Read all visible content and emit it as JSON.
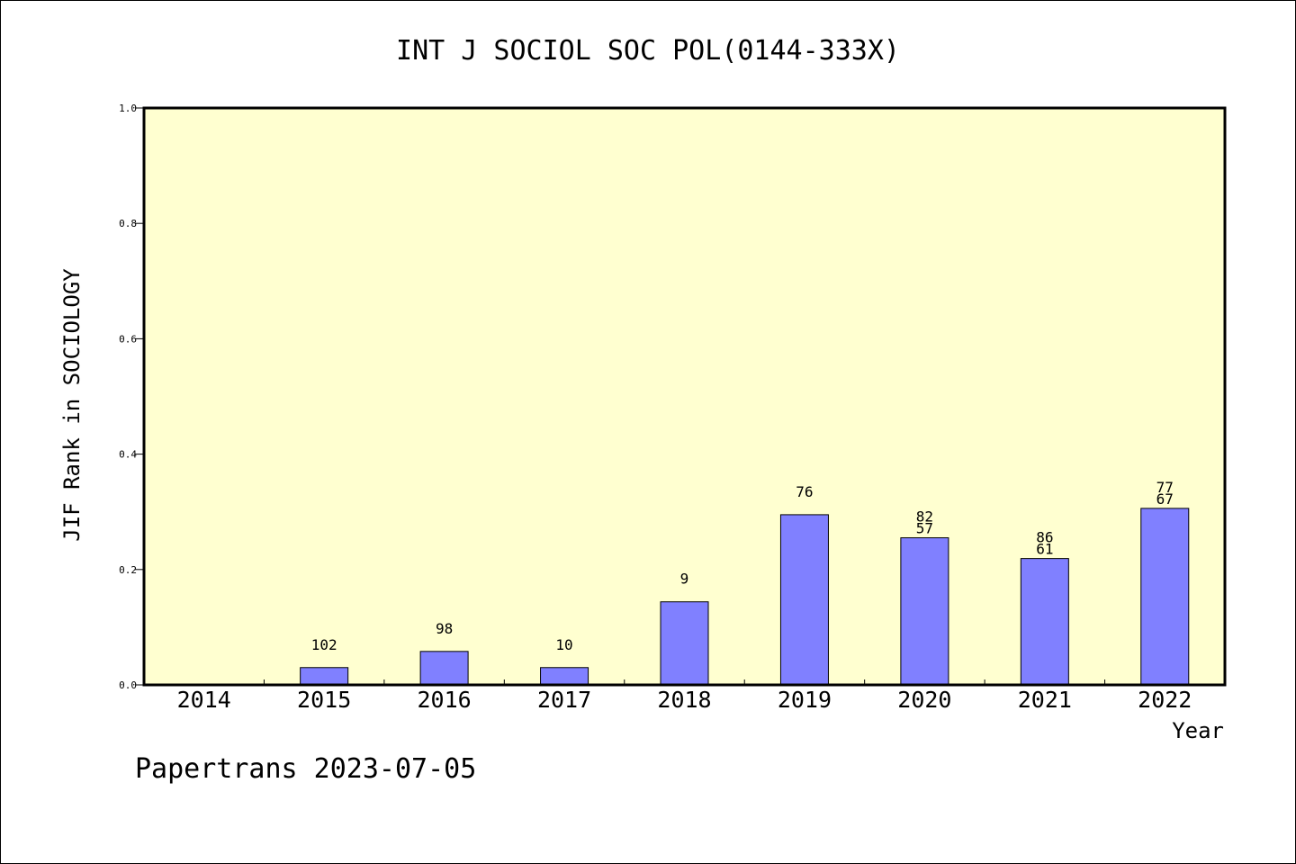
{
  "chart_data": {
    "type": "bar",
    "title": "INT J SOCIOL SOC POL(0144-333X)",
    "xlabel": "Year",
    "ylabel": "JIF Rank in SOCIOLOGY",
    "ylim": [
      0,
      1.0
    ],
    "yticks": [
      "0.0",
      "0.2",
      "0.4",
      "0.6",
      "0.8",
      "1.0"
    ],
    "categories": [
      "2014",
      "2015",
      "2016",
      "2017",
      "2018",
      "2019",
      "2020",
      "2021",
      "2022"
    ],
    "values": [
      null,
      0.03,
      0.058,
      0.03,
      0.144,
      0.295,
      0.255,
      0.219,
      0.306
    ],
    "bar_labels": [
      [],
      [
        "102"
      ],
      [
        "98"
      ],
      [
        "10"
      ],
      [
        "9"
      ],
      [
        "76"
      ],
      [
        "82",
        "57"
      ],
      [
        "86",
        "61"
      ],
      [
        "77",
        "67"
      ]
    ],
    "grid": false,
    "colors": {
      "plot_background": "#ffffd0",
      "bar_fill": "#8080ff",
      "bar_stroke": "#000000"
    }
  },
  "footer": {
    "text": "Papertrans 2023-07-05"
  }
}
